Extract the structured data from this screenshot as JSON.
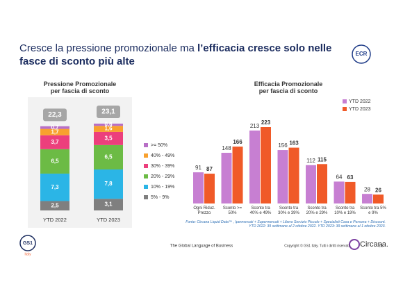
{
  "title": {
    "regular": "Cresce la pressione promozionale ma ",
    "bold": "l’efficacia cresce solo nelle fasce di sconto più alte"
  },
  "logos": {
    "ecr": "ECR",
    "gs1": "GS1",
    "gs1_sub": "Italy",
    "circana": "Circana."
  },
  "chart_data": [
    {
      "type": "bar",
      "stacked": true,
      "title": "Pressione Promozionale\nper fascia di sconto",
      "categories": [
        "YTD 2022",
        "YTD 2023"
      ],
      "totals": [
        22.3,
        23.1
      ],
      "totals_labels": [
        "22,3",
        "23,1"
      ],
      "series": [
        {
          "name": "5% - 9%",
          "color": "#7f7f7f",
          "values": [
            2.5,
            3.1
          ],
          "value_labels": [
            "2,5",
            "3,1"
          ]
        },
        {
          "name": "10% - 19%",
          "color": "#2bb5e6",
          "values": [
            7.3,
            7.8
          ],
          "value_labels": [
            "7,3",
            "7,8"
          ]
        },
        {
          "name": "20% - 29%",
          "color": "#6cbb45",
          "values": [
            6.5,
            6.5
          ],
          "value_labels": [
            "6,5",
            "6,5"
          ]
        },
        {
          "name": "30% - 39%",
          "color": "#ec3f7c",
          "values": [
            3.7,
            3.5
          ],
          "value_labels": [
            "3,7",
            "3,5"
          ]
        },
        {
          "name": "40% - 49%",
          "color": "#f8a12e",
          "values": [
            1.7,
            1.6
          ],
          "value_labels": [
            "1,7",
            "1,6"
          ]
        },
        {
          "name": ">= 50%",
          "color": "#b86fc6",
          "values": [
            0.7,
            0.6
          ],
          "value_labels": [
            "0,7",
            "0,6"
          ]
        }
      ]
    },
    {
      "type": "bar",
      "stacked": false,
      "title": "Efficacia Promozionale\nper fascia di sconto",
      "legend": "top-right",
      "categories": [
        "Ogni Riduz.\nPrezzo",
        "Sconto >=\n50%",
        "Sconto tra\n40% e 49%",
        "Sconto tra\n30% e 39%",
        "Sconto tra\n20% e 29%",
        "Sconto tra\n10% e 19%",
        "Sconto tra 5%\ne 9%"
      ],
      "series": [
        {
          "name": "YTD 2022",
          "color": "#c77fd2",
          "values": [
            91,
            148,
            213,
            156,
            112,
            64,
            28
          ]
        },
        {
          "name": "YTD 2023",
          "color": "#f05a28",
          "values": [
            87,
            166,
            223,
            163,
            115,
            63,
            26
          ]
        }
      ]
    }
  ],
  "source": "Fonte: Circana Liquid Data™ , Ipermercati + Supermercati + Libero Servizio Piccolo + Specialisti Casa e Persona + Discount.\nYTD 2022: 39 settimane al 2 ottobre 2022. YTD 2023: 39 settimane al 1 ottobre 2023.",
  "footer": {
    "tagline": "The Global Language of Business",
    "copyright": "Copyright © GS1 Italy. Tutti i diritti riservati",
    "page": "21"
  }
}
